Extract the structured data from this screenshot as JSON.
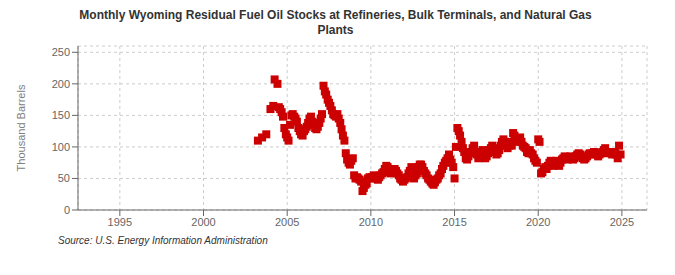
{
  "chart_data": {
    "type": "scatter",
    "title": "Monthly Wyoming Residual Fuel Oil Stocks at Refineries, Bulk Terminals, and Natural Gas\nPlants",
    "ylabel": "Thousand Barrels",
    "annotations": [
      "Source: U.S. Energy Information Administration"
    ],
    "xlim": [
      1992.5,
      2026.5
    ],
    "ylim": [
      0,
      260
    ],
    "xticks": [
      1995,
      2000,
      2005,
      2010,
      2015,
      2020,
      2025
    ],
    "yticks": [
      0,
      50,
      100,
      150,
      200,
      250
    ],
    "color": "#cc0000",
    "marker": "square",
    "grid": true,
    "x": [
      2003.25,
      2003.5,
      2003.75,
      2004.0,
      2004.17,
      2004.25,
      2004.42,
      2004.5,
      2004.58,
      2004.67,
      2004.75,
      2004.83,
      2004.92,
      2005.0,
      2005.08,
      2005.17,
      2005.25,
      2005.33,
      2005.42,
      2005.5,
      2005.58,
      2005.67,
      2005.75,
      2005.83,
      2005.92,
      2006.0,
      2006.08,
      2006.17,
      2006.25,
      2006.33,
      2006.42,
      2006.5,
      2006.58,
      2006.67,
      2006.75,
      2006.83,
      2006.92,
      2007.0,
      2007.08,
      2007.17,
      2007.25,
      2007.33,
      2007.42,
      2007.5,
      2007.58,
      2007.67,
      2007.75,
      2007.83,
      2007.92,
      2008.0,
      2008.08,
      2008.17,
      2008.25,
      2008.33,
      2008.42,
      2008.5,
      2008.58,
      2008.67,
      2008.75,
      2008.83,
      2008.92,
      2009.0,
      2009.08,
      2009.17,
      2009.25,
      2009.33,
      2009.42,
      2009.5,
      2009.58,
      2009.67,
      2009.75,
      2009.83,
      2009.92,
      2010.0,
      2010.08,
      2010.17,
      2010.25,
      2010.33,
      2010.42,
      2010.5,
      2010.58,
      2010.67,
      2010.75,
      2010.83,
      2010.92,
      2011.0,
      2011.08,
      2011.17,
      2011.25,
      2011.33,
      2011.42,
      2011.5,
      2011.58,
      2011.67,
      2011.75,
      2011.83,
      2011.92,
      2012.0,
      2012.08,
      2012.17,
      2012.25,
      2012.33,
      2012.42,
      2012.5,
      2012.58,
      2012.67,
      2012.75,
      2012.83,
      2012.92,
      2013.0,
      2013.08,
      2013.17,
      2013.25,
      2013.33,
      2013.42,
      2013.5,
      2013.58,
      2013.67,
      2013.75,
      2013.83,
      2013.92,
      2014.0,
      2014.08,
      2014.17,
      2014.25,
      2014.33,
      2014.42,
      2014.5,
      2014.58,
      2014.67,
      2014.75,
      2014.83,
      2014.92,
      2015.0,
      2015.08,
      2015.17,
      2015.25,
      2015.33,
      2015.42,
      2015.5,
      2015.58,
      2015.67,
      2015.75,
      2015.83,
      2015.92,
      2016.0,
      2016.08,
      2016.17,
      2016.25,
      2016.33,
      2016.42,
      2016.5,
      2016.58,
      2016.67,
      2016.75,
      2016.83,
      2016.92,
      2017.0,
      2017.08,
      2017.17,
      2017.25,
      2017.33,
      2017.42,
      2017.5,
      2017.58,
      2017.67,
      2017.75,
      2017.83,
      2017.92,
      2018.0,
      2018.08,
      2018.17,
      2018.25,
      2018.33,
      2018.42,
      2018.5,
      2018.58,
      2018.67,
      2018.75,
      2018.83,
      2018.92,
      2019.0,
      2019.08,
      2019.17,
      2019.25,
      2019.33,
      2019.42,
      2019.5,
      2019.58,
      2019.67,
      2019.75,
      2019.83,
      2019.92,
      2020.0,
      2020.08,
      2020.17,
      2020.25,
      2020.33,
      2020.42,
      2020.5,
      2020.58,
      2020.67,
      2020.75,
      2020.83,
      2020.92,
      2021.0,
      2021.08,
      2021.17,
      2021.25,
      2021.33,
      2021.42,
      2021.5,
      2021.58,
      2021.67,
      2021.75,
      2021.83,
      2021.92,
      2022.0,
      2022.08,
      2022.17,
      2022.25,
      2022.33,
      2022.42,
      2022.5,
      2022.58,
      2022.67,
      2022.75,
      2022.83,
      2022.92,
      2023.0,
      2023.08,
      2023.17,
      2023.25,
      2023.33,
      2023.42,
      2023.5,
      2023.58,
      2023.67,
      2023.75,
      2023.83,
      2023.92,
      2024.0,
      2024.08,
      2024.17,
      2024.25,
      2024.33,
      2024.42,
      2024.5,
      2024.58,
      2024.67,
      2024.75,
      2024.83,
      2024.92
    ],
    "values": [
      110,
      115,
      120,
      160,
      165,
      207,
      200,
      163,
      160,
      155,
      148,
      130,
      120,
      115,
      110,
      135,
      150,
      152,
      148,
      145,
      140,
      130,
      125,
      120,
      118,
      125,
      128,
      132,
      138,
      145,
      148,
      140,
      135,
      130,
      128,
      132,
      138,
      145,
      152,
      197,
      188,
      183,
      175,
      170,
      165,
      158,
      152,
      150,
      148,
      152,
      145,
      138,
      128,
      118,
      110,
      90,
      80,
      75,
      72,
      78,
      82,
      55,
      50,
      52,
      50,
      48,
      45,
      30,
      35,
      40,
      42,
      50,
      52,
      50,
      52,
      55,
      52,
      50,
      48,
      52,
      55,
      58,
      60,
      65,
      70,
      68,
      62,
      58,
      60,
      62,
      65,
      62,
      58,
      55,
      50,
      48,
      45,
      48,
      50,
      52,
      58,
      62,
      68,
      55,
      50,
      55,
      58,
      68,
      72,
      72,
      68,
      62,
      58,
      55,
      50,
      48,
      45,
      42,
      40,
      44,
      48,
      50,
      55,
      58,
      65,
      70,
      75,
      78,
      82,
      88,
      80,
      75,
      68,
      50,
      100,
      130,
      125,
      118,
      108,
      98,
      92,
      82,
      80,
      85,
      90,
      92,
      98,
      102,
      92,
      88,
      82,
      88,
      90,
      95,
      88,
      82,
      85,
      90,
      95,
      98,
      102,
      98,
      92,
      88,
      90,
      95,
      102,
      108,
      112,
      108,
      102,
      98,
      102,
      108,
      102,
      122,
      118,
      112,
      108,
      110,
      115,
      108,
      102,
      100,
      98,
      92,
      90,
      95,
      90,
      88,
      82,
      78,
      75,
      112,
      108,
      58,
      60,
      65,
      68,
      65,
      70,
      75,
      78,
      72,
      70,
      75,
      78,
      72,
      70,
      75,
      80,
      82,
      85,
      82,
      80,
      82,
      85,
      82,
      80,
      82,
      85,
      88,
      90,
      88,
      85,
      82,
      80,
      82,
      85,
      88,
      90,
      88,
      90,
      92,
      90,
      88,
      85,
      88,
      90,
      92,
      95,
      98,
      92,
      90,
      92,
      90,
      88,
      90,
      92,
      88,
      82,
      102,
      88
    ]
  }
}
